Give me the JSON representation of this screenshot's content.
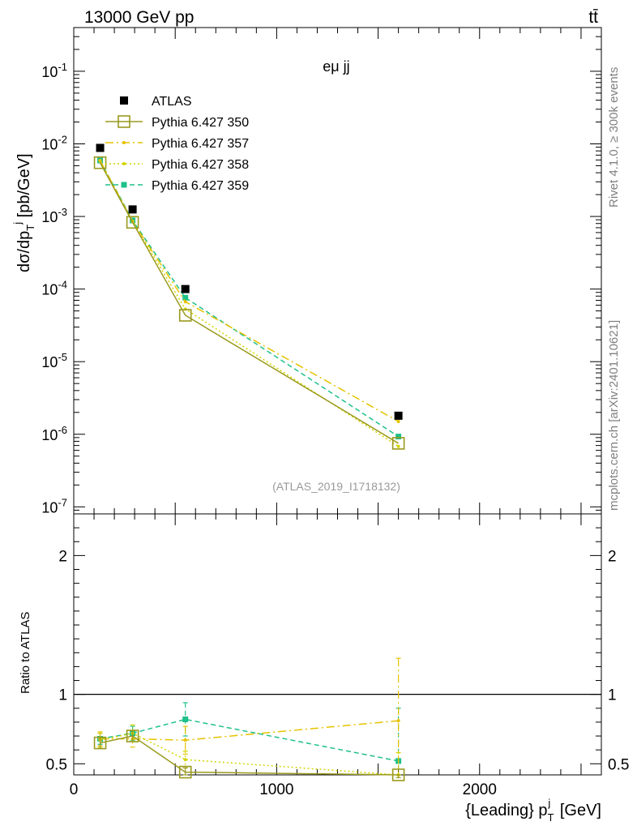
{
  "header": {
    "energy_label": "13000 GeV pp",
    "process_label": "tt̄"
  },
  "side": {
    "rivet": "Rivet 4.1.0, ≥ 300k events",
    "mcplots": "mcplots.cern.ch [arXiv:2401.10621]"
  },
  "chart_data": {
    "type": "line",
    "title": "eμ jj",
    "analysis_tag": "(ATLAS_2019_I1718132)",
    "xlabel": "{Leading} p_T^j [GeV]",
    "ylabel": "dσ/dp_T^j [pb/GeV]",
    "ratio_ylabel": "Ratio to ATLAS",
    "x": [
      130,
      290,
      550,
      1600
    ],
    "xlim": [
      0,
      2600
    ],
    "ylim": [
      8e-08,
      0.4
    ],
    "ratio_ylim": [
      0.42,
      2.3
    ],
    "yscale": "log",
    "xticks": [
      0,
      1000,
      2000
    ],
    "yticks_main": [
      1e-07,
      1e-06,
      1e-05,
      0.0001,
      0.001,
      0.01,
      0.1
    ],
    "yticks_main_labels": [
      "10^-7",
      "10^-6",
      "10^-5",
      "10^-4",
      "10^-3",
      "10^-2",
      "10^-1"
    ],
    "yticks_ratio": [
      0.5,
      1,
      2
    ],
    "yticks_ratio_labels": [
      "0.5",
      "1",
      "2"
    ],
    "data": {
      "name": "ATLAS",
      "values": [
        0.0088,
        0.00125,
        0.0001,
        1.8e-06
      ]
    },
    "series": [
      {
        "name": "Pythia 6.427 350",
        "color": "#9a9a1e",
        "dash": "",
        "marker": "open-square",
        "values": [
          0.0055,
          0.00083,
          4.35e-05,
          7.5e-07
        ],
        "ratio": [
          0.65,
          0.7,
          0.44,
          0.38
        ],
        "ratio_err": [
          0.04,
          0.04,
          0.03,
          0.02
        ]
      },
      {
        "name": "Pythia 6.427 357",
        "color": "#e6c200",
        "dash": "10,4,2,4",
        "marker": "small-dot",
        "values": [
          0.0059,
          0.00085,
          6.7e-05,
          1.5e-06
        ],
        "ratio": [
          0.68,
          0.68,
          0.67,
          0.81
        ],
        "ratio_err": [
          0.05,
          0.06,
          0.1,
          0.45
        ]
      },
      {
        "name": "Pythia 6.427 358",
        "color": "#d4d400",
        "dash": "2,3",
        "marker": "small-dot",
        "values": [
          0.0058,
          0.00086,
          5.3e-05,
          6.8e-07
        ],
        "ratio": [
          0.67,
          0.72,
          0.53,
          0.38
        ],
        "ratio_err": [
          0.05,
          0.06,
          0.06,
          0.2
        ]
      },
      {
        "name": "Pythia 6.427 359",
        "color": "#1ec08a",
        "dash": "6,4",
        "marker": "filled-square",
        "values": [
          0.0059,
          0.00088,
          7.6e-05,
          9.3e-07
        ],
        "ratio": [
          0.68,
          0.72,
          0.82,
          0.52
        ],
        "ratio_err": [
          0.04,
          0.05,
          0.12,
          0.38
        ]
      }
    ]
  }
}
